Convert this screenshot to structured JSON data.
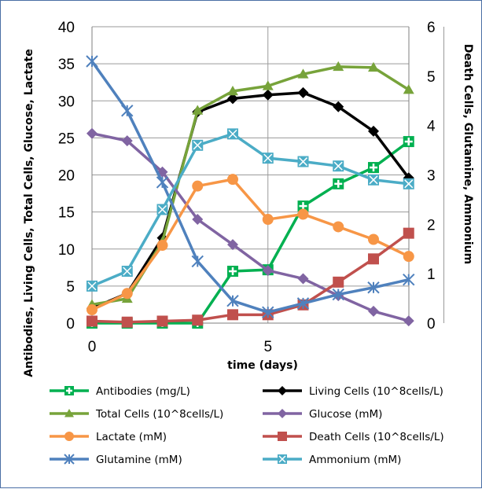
{
  "chart_data": {
    "type": "line",
    "x": [
      0,
      1,
      2,
      3,
      4,
      5,
      6,
      7,
      8,
      9
    ],
    "xlabel": "time (days)",
    "ylabel_left": "Antibodies, Living Cells, Total Cells, Glucose, Lactate",
    "ylabel_right": "Death Cells, Glutamine, Ammonium",
    "xlim": [
      0,
      9
    ],
    "xticks": [
      "0",
      "5"
    ],
    "ylim_left": [
      0,
      40
    ],
    "ylim_right": [
      0,
      6
    ],
    "yticks_left": [
      "0",
      "5",
      "10",
      "15",
      "20",
      "25",
      "30",
      "35",
      "40"
    ],
    "yticks_right": [
      "0",
      "1",
      "2",
      "3",
      "4",
      "5",
      "6"
    ],
    "grid": true,
    "legend_position": "bottom",
    "series": [
      {
        "name": "Antibodies (mg/L)",
        "axis": "left",
        "color": "#00b050",
        "marker": "plus-square",
        "values": [
          0,
          0,
          0,
          0,
          7,
          7.2,
          15.8,
          18.8,
          21,
          24.5
        ]
      },
      {
        "name": "Living Cells (10^8cells/L)",
        "axis": "left",
        "color": "#000000",
        "marker": "diamond",
        "values": [
          2,
          4,
          11.5,
          28.5,
          30.3,
          30.8,
          31.1,
          29.2,
          25.9,
          19.6
        ]
      },
      {
        "name": "Total Cells (10^8cells/L)",
        "axis": "left",
        "color": "#77a33a",
        "marker": "triangle",
        "values": [
          2.5,
          3.3,
          11,
          28.7,
          31.3,
          32,
          33.6,
          34.6,
          34.5,
          31.5
        ]
      },
      {
        "name": "Glucose (mM)",
        "axis": "left",
        "color": "#8064a2",
        "marker": "diamond",
        "values": [
          25.6,
          24.6,
          20.4,
          14,
          10.6,
          7.1,
          6,
          3.7,
          1.6,
          0.3
        ]
      },
      {
        "name": "Lactate (mM)",
        "axis": "left",
        "color": "#f79646",
        "marker": "circle",
        "values": [
          1.8,
          4,
          10.5,
          18.5,
          19.4,
          14,
          14.7,
          13,
          11.3,
          9
        ]
      },
      {
        "name": "Death Cells (10^8cells/L)",
        "axis": "right",
        "color": "#c0504d",
        "marker": "square",
        "values": [
          0.04,
          0.02,
          0.04,
          0.06,
          0.17,
          0.17,
          0.37,
          0.83,
          1.3,
          1.82
        ]
      },
      {
        "name": "Glutamine (mM)",
        "axis": "right",
        "color": "#4f81bd",
        "marker": "star",
        "values": [
          5.3,
          4.3,
          2.85,
          1.25,
          0.45,
          0.22,
          0.4,
          0.58,
          0.72,
          0.88
        ]
      },
      {
        "name": "Ammonium (mM)",
        "axis": "right",
        "color": "#4bacc6",
        "marker": "star-square",
        "values": [
          0.75,
          1.05,
          2.3,
          3.6,
          3.83,
          3.34,
          3.27,
          3.18,
          2.9,
          2.82
        ]
      }
    ]
  }
}
